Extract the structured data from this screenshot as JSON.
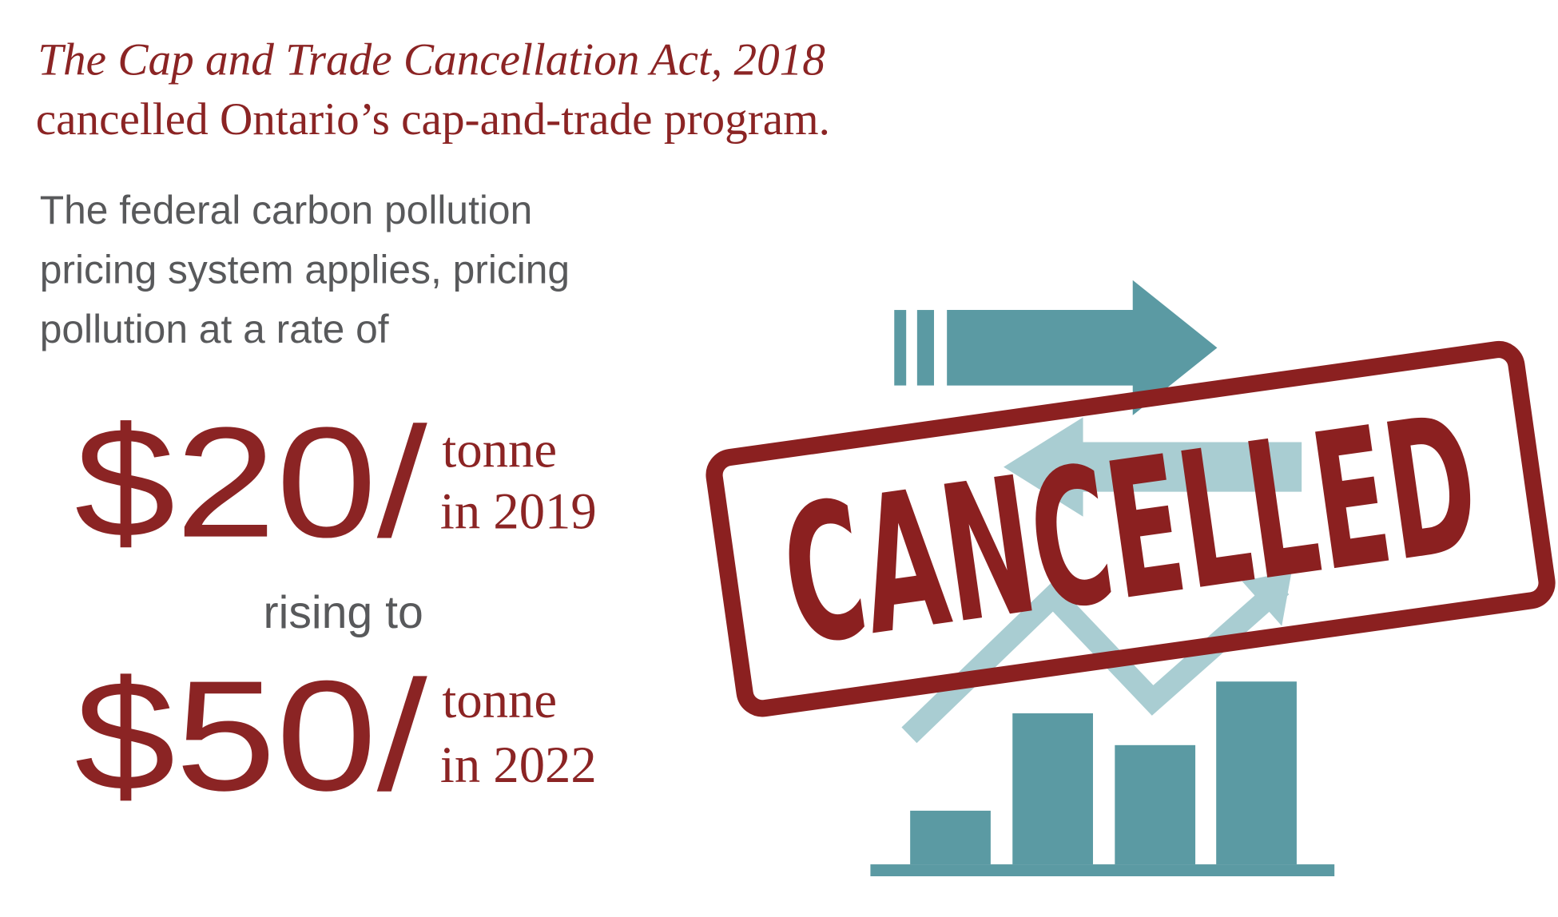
{
  "header": {
    "act_title": "The Cap and Trade Cancellation Act, 2018",
    "statement": "cancelled Ontario’s cap-and-trade program."
  },
  "body": {
    "lines": [
      "The federal carbon pollution",
      "pricing system applies, pricing",
      "pollution at a rate of"
    ]
  },
  "prices": [
    {
      "amount": "$20/",
      "unit": "tonne",
      "year": "in 2019"
    },
    {
      "amount": "$50/",
      "unit": "tonne",
      "year": "in 2022"
    }
  ],
  "connector": "rising to",
  "stamp": "CANCELLED"
}
